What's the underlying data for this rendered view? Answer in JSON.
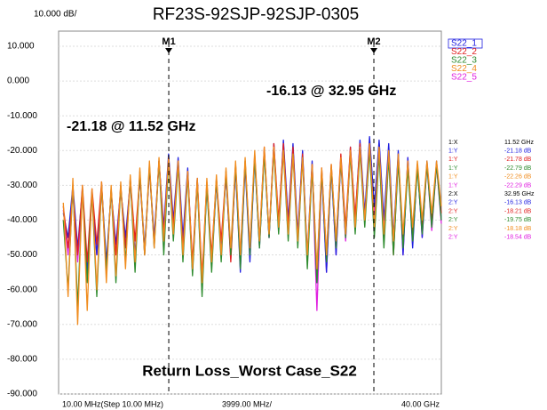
{
  "chart_data": {
    "type": "line",
    "title": "RF23S-92SJP-92SJP-0305",
    "scale_label": "10.000 dB/",
    "bottom_title": "Return Loss_Worst Case_S22",
    "x_start_label": "10.00 MHz(Step 10.00 MHz)",
    "x_span_label": "3999.00 MHz/",
    "x_stop_label": "40.00 GHz",
    "xlim": [
      0.01,
      40
    ],
    "ylim": [
      -90,
      10
    ],
    "yticks": [
      {
        "value": 10,
        "label": "10.000"
      },
      {
        "value": 0,
        "label": "0.000"
      },
      {
        "value": -10,
        "label": "-10.000"
      },
      {
        "value": -20,
        "label": "-20.000"
      },
      {
        "value": -30,
        "label": "-30.000"
      },
      {
        "value": -40,
        "label": "-40.000"
      },
      {
        "value": -50,
        "label": "-50.000"
      },
      {
        "value": -60,
        "label": "-60.000"
      },
      {
        "value": -70,
        "label": "-70.000"
      },
      {
        "value": -80,
        "label": "-80.000"
      },
      {
        "value": -90,
        "label": "-90.000"
      }
    ],
    "x": [
      0.5,
      1,
      1.5,
      2,
      2.5,
      3,
      3.5,
      4,
      4.5,
      5,
      5.5,
      6,
      6.5,
      7,
      7.5,
      8,
      8.5,
      9,
      9.5,
      10,
      10.5,
      11,
      11.5,
      12,
      12.5,
      13,
      13.5,
      14,
      14.5,
      15,
      15.5,
      16,
      16.5,
      17,
      17.5,
      18,
      18.5,
      19,
      19.5,
      20,
      20.5,
      21,
      21.5,
      22,
      22.5,
      23,
      23.5,
      24,
      24.5,
      25,
      25.5,
      26,
      26.5,
      27,
      27.5,
      28,
      28.5,
      29,
      29.5,
      30,
      30.5,
      31,
      31.5,
      32,
      32.5,
      33,
      33.5,
      34,
      34.5,
      35,
      35.5,
      36,
      36.5,
      37,
      37.5,
      38,
      38.5,
      39,
      39.5,
      40
    ],
    "series": [
      {
        "name": "S22_1",
        "color": "#1f1fe0",
        "values": [
          -38,
          -45,
          -30,
          -48,
          -31,
          -55,
          -33,
          -50,
          -30,
          -52,
          -32,
          -47,
          -31,
          -45,
          -29,
          -50,
          -27,
          -48,
          -25,
          -45,
          -23,
          -42,
          -21,
          -40,
          -22,
          -45,
          -25,
          -55,
          -28,
          -60,
          -30,
          -52,
          -29,
          -48,
          -27,
          -50,
          -25,
          -55,
          -24,
          -52,
          -22,
          -48,
          -20,
          -45,
          -18,
          -42,
          -17,
          -40,
          -18,
          -44,
          -20,
          -50,
          -23,
          -58,
          -26,
          -55,
          -25,
          -50,
          -22,
          -45,
          -19,
          -40,
          -17,
          -38,
          -16,
          -36,
          -17,
          -40,
          -18,
          -45,
          -20,
          -50,
          -22,
          -48,
          -24,
          -45,
          -23,
          -42,
          -23,
          -40
        ]
      },
      {
        "name": "S22_2",
        "color": "#e02020",
        "values": [
          -36,
          -48,
          -32,
          -50,
          -30,
          -52,
          -31,
          -47,
          -29,
          -55,
          -31,
          -50,
          -30,
          -48,
          -28,
          -46,
          -27,
          -50,
          -25,
          -47,
          -23,
          -44,
          -22,
          -42,
          -23,
          -48,
          -26,
          -52,
          -28,
          -56,
          -29,
          -50,
          -28,
          -46,
          -26,
          -52,
          -24,
          -50,
          -23,
          -48,
          -21,
          -46,
          -19,
          -44,
          -18,
          -40,
          -18,
          -42,
          -19,
          -46,
          -21,
          -52,
          -24,
          -55,
          -25,
          -50,
          -24,
          -46,
          -21,
          -42,
          -19,
          -39,
          -18,
          -40,
          -18,
          -42,
          -19,
          -46,
          -21,
          -50,
          -22,
          -46,
          -24,
          -44,
          -24,
          -42,
          -24,
          -40,
          -24,
          -38
        ]
      },
      {
        "name": "S22_3",
        "color": "#2e8b2e",
        "values": [
          -40,
          -60,
          -30,
          -65,
          -31,
          -58,
          -32,
          -62,
          -30,
          -55,
          -31,
          -58,
          -30,
          -52,
          -28,
          -55,
          -26,
          -50,
          -24,
          -48,
          -23,
          -50,
          -23,
          -46,
          -24,
          -52,
          -27,
          -56,
          -29,
          -62,
          -30,
          -55,
          -28,
          -52,
          -26,
          -50,
          -24,
          -54,
          -23,
          -50,
          -22,
          -48,
          -21,
          -45,
          -20,
          -44,
          -20,
          -46,
          -21,
          -48,
          -22,
          -54,
          -25,
          -58,
          -26,
          -52,
          -25,
          -48,
          -23,
          -45,
          -21,
          -44,
          -20,
          -42,
          -20,
          -45,
          -21,
          -48,
          -22,
          -50,
          -23,
          -48,
          -25,
          -46,
          -25,
          -44,
          -24,
          -42,
          -24,
          -40
        ]
      },
      {
        "name": "S22_4",
        "color": "#f08c1e",
        "values": [
          -35,
          -62,
          -28,
          -70,
          -30,
          -66,
          -31,
          -60,
          -29,
          -58,
          -30,
          -56,
          -29,
          -54,
          -27,
          -52,
          -25,
          -50,
          -23,
          -48,
          -22,
          -46,
          -22,
          -44,
          -23,
          -50,
          -26,
          -54,
          -28,
          -58,
          -28,
          -52,
          -27,
          -50,
          -25,
          -48,
          -23,
          -50,
          -22,
          -48,
          -20,
          -46,
          -19,
          -44,
          -19,
          -42,
          -20,
          -44,
          -21,
          -46,
          -22,
          -50,
          -24,
          -54,
          -25,
          -50,
          -24,
          -46,
          -22,
          -44,
          -20,
          -42,
          -19,
          -40,
          -18,
          -42,
          -19,
          -44,
          -20,
          -46,
          -21,
          -44,
          -23,
          -42,
          -23,
          -40,
          -23,
          -38,
          -23,
          -36
        ]
      },
      {
        "name": "S22_5",
        "color": "#e020e0",
        "values": [
          -37,
          -50,
          -31,
          -52,
          -32,
          -56,
          -33,
          -50,
          -31,
          -53,
          -32,
          -50,
          -31,
          -47,
          -29,
          -51,
          -27,
          -49,
          -25,
          -46,
          -23,
          -43,
          -22,
          -41,
          -23,
          -47,
          -26,
          -54,
          -29,
          -58,
          -30,
          -53,
          -29,
          -49,
          -27,
          -51,
          -25,
          -53,
          -24,
          -50,
          -22,
          -47,
          -20,
          -45,
          -19,
          -43,
          -18,
          -41,
          -19,
          -45,
          -21,
          -51,
          -24,
          -66,
          -26,
          -55,
          -25,
          -50,
          -23,
          -46,
          -20,
          -41,
          -18,
          -39,
          -18,
          -38,
          -18,
          -41,
          -19,
          -46,
          -21,
          -50,
          -22,
          -47,
          -24,
          -45,
          -24,
          -43,
          -24,
          -41
        ]
      }
    ],
    "markers": [
      {
        "label": "M1",
        "x": 11.52
      },
      {
        "label": "M2",
        "x": 32.95
      }
    ],
    "annotations": [
      "-21.18 @ 11.52 GHz",
      "-16.13 @ 32.95 GHz"
    ],
    "marker_table": [
      [
        "1:X",
        "11.52 GHz"
      ],
      [
        "1:Y",
        "-21.18 dB"
      ],
      [
        "1:Y",
        "-21.78 dB"
      ],
      [
        "1:Y",
        "-22.79 dB"
      ],
      [
        "1:Y",
        "-22.26 dB"
      ],
      [
        "1:Y",
        "-22.29 dB"
      ],
      [
        "2:X",
        "32.95 GHz"
      ],
      [
        "2:Y",
        "-16.13 dB"
      ],
      [
        "2:Y",
        "-18.21 dB"
      ],
      [
        "2:Y",
        "-19.75 dB"
      ],
      [
        "2:Y",
        "-18.18 dB"
      ],
      [
        "2:Y",
        "-18.54 dB"
      ]
    ]
  }
}
